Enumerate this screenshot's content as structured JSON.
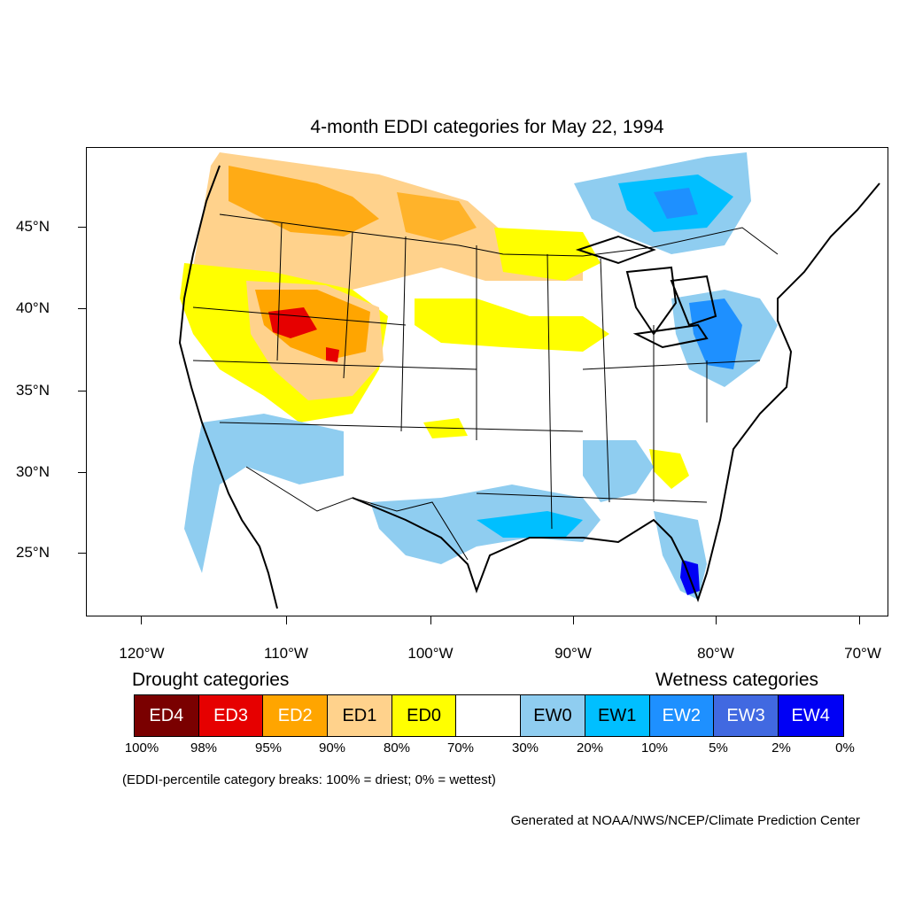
{
  "title": "4-month EDDI categories for May 22, 1994",
  "map": {
    "latitude_labels": [
      "45°N",
      "40°N",
      "35°N",
      "30°N",
      "25°N"
    ],
    "longitude_labels": [
      "120°W",
      "110°W",
      "100°W",
      "90°W",
      "80°W",
      "70°W"
    ],
    "colors": {
      "ED4": "#7a0000",
      "ED3": "#e60000",
      "ED2": "#ffa500",
      "ED1": "#ffd28c",
      "ED0": "#ffff00",
      "neutral": "#ffffff",
      "EW0": "#8fcdf0",
      "EW1": "#00bfff",
      "EW2": "#1e90ff",
      "EW3": "#4169e1",
      "EW4": "#0000f5"
    }
  },
  "legend": {
    "drought_heading": "Drought categories",
    "wetness_heading": "Wetness categories",
    "categories": [
      {
        "label": "ED4",
        "color": "#7a0000",
        "text_color": "#ffffff"
      },
      {
        "label": "ED3",
        "color": "#e60000",
        "text_color": "#ffffff"
      },
      {
        "label": "ED2",
        "color": "#ffa500",
        "text_color": "#ffffff"
      },
      {
        "label": "ED1",
        "color": "#ffd28c",
        "text_color": "#000000"
      },
      {
        "label": "ED0",
        "color": "#ffff00",
        "text_color": "#000000"
      },
      {
        "label": "",
        "color": "#ffffff",
        "text_color": "#000000"
      },
      {
        "label": "EW0",
        "color": "#8fcdf0",
        "text_color": "#000000"
      },
      {
        "label": "EW1",
        "color": "#00bfff",
        "text_color": "#000000"
      },
      {
        "label": "EW2",
        "color": "#1e90ff",
        "text_color": "#ffffff"
      },
      {
        "label": "EW3",
        "color": "#4169e1",
        "text_color": "#ffffff"
      },
      {
        "label": "EW4",
        "color": "#0000f5",
        "text_color": "#ffffff"
      }
    ],
    "breaks": [
      "100%",
      "98%",
      "95%",
      "90%",
      "80%",
      "70%",
      "30%",
      "20%",
      "10%",
      "5%",
      "2%",
      "0%"
    ]
  },
  "note": "(EDDI-percentile category breaks: 100% = driest; 0% = wettest)",
  "credit": "Generated at NOAA/NWS/NCEP/Climate Prediction Center"
}
